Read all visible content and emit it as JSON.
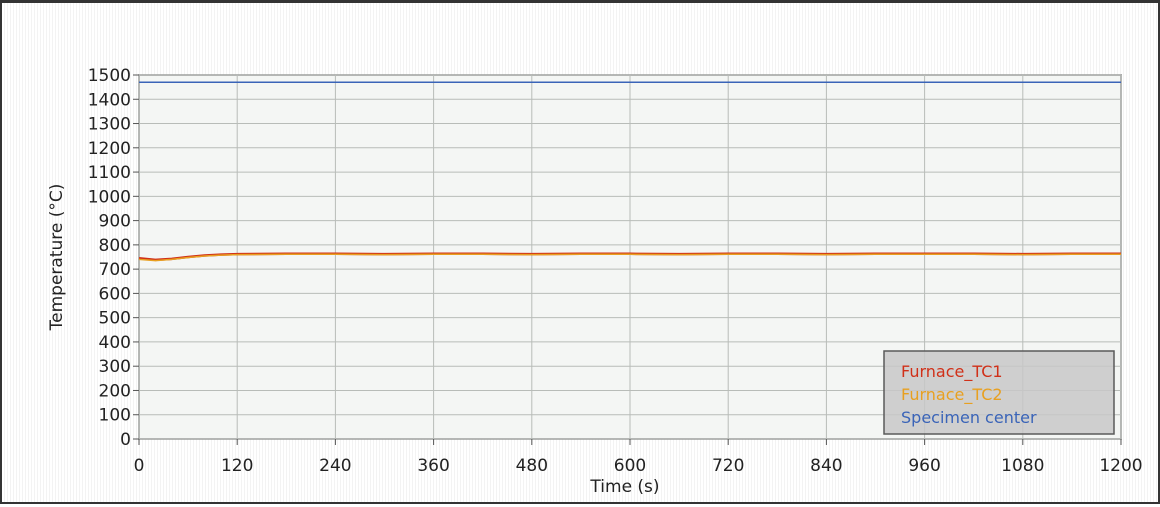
{
  "chart_data": {
    "type": "line",
    "xlabel": "Time (s)",
    "ylabel": "Temperature (°C)",
    "xlim": [
      0,
      1200
    ],
    "ylim": [
      0,
      1500
    ],
    "x_ticks": [
      0,
      120,
      240,
      360,
      480,
      600,
      720,
      840,
      960,
      1080,
      1200
    ],
    "y_ticks": [
      0,
      100,
      200,
      300,
      400,
      500,
      600,
      700,
      800,
      900,
      1000,
      1100,
      1200,
      1300,
      1400,
      1500
    ],
    "grid": true,
    "legend_position": "bottom-right",
    "series": [
      {
        "name": "Furnace_TC1",
        "color": "#d03018",
        "x": [
          0,
          20,
          40,
          60,
          80,
          100,
          120,
          180,
          240,
          300,
          360,
          420,
          480,
          540,
          600,
          660,
          720,
          780,
          840,
          900,
          960,
          1020,
          1080,
          1140,
          1200
        ],
        "y": [
          745,
          738,
          742,
          750,
          756,
          760,
          762,
          763,
          763,
          762,
          763,
          763,
          762,
          763,
          763,
          762,
          763,
          763,
          762,
          763,
          763,
          763,
          762,
          763,
          763
        ]
      },
      {
        "name": "Furnace_TC2",
        "color": "#e8a020",
        "x": [
          0,
          20,
          40,
          60,
          80,
          100,
          120,
          180,
          240,
          300,
          360,
          420,
          480,
          540,
          600,
          660,
          720,
          780,
          840,
          900,
          960,
          1020,
          1080,
          1140,
          1200
        ],
        "y": [
          740,
          735,
          740,
          748,
          754,
          758,
          760,
          761,
          761,
          760,
          761,
          761,
          760,
          761,
          761,
          760,
          761,
          761,
          760,
          761,
          761,
          761,
          760,
          761,
          761
        ]
      },
      {
        "name": "Specimen center",
        "color": "#3a64b8",
        "x": [
          0,
          1200
        ],
        "y": [
          1470,
          1470
        ]
      }
    ]
  }
}
